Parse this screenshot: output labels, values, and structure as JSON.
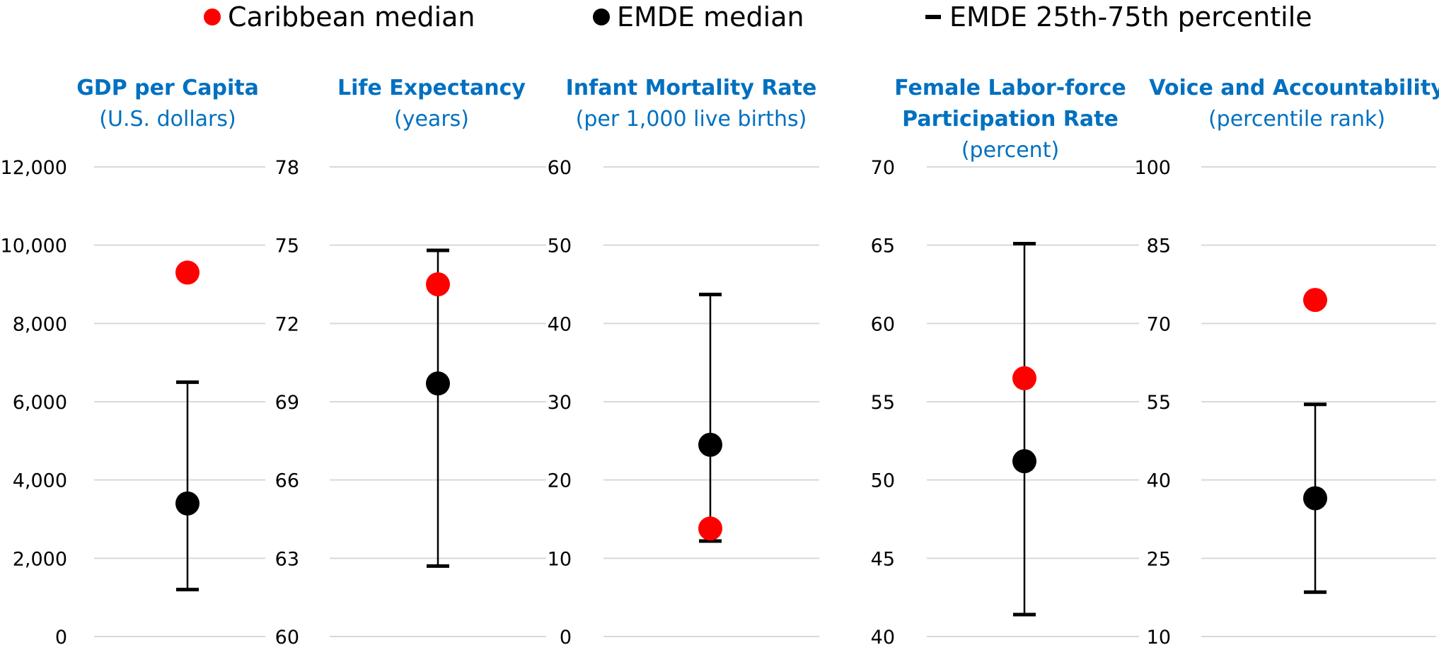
{
  "legend": {
    "caribbean": "Caribbean median",
    "emde": "EMDE median",
    "range": "EMDE 25th-75th percentile"
  },
  "colors": {
    "caribbean": "#FF0000",
    "emde": "#000000",
    "title": "#0070C0",
    "grid": "#D9D9D9"
  },
  "chart_data": [
    {
      "type": "scatter",
      "title": "GDP per Capita",
      "subtitle": "(U.S. dollars)",
      "ticks": [
        "0",
        "2,000",
        "4,000",
        "6,000",
        "8,000",
        "10,000",
        "12,000"
      ],
      "ylim": [
        0,
        12000
      ],
      "caribbean_median": 9300,
      "emde_median": 3400,
      "emde_p25": 1200,
      "emde_p75": 6500
    },
    {
      "type": "scatter",
      "title": "Life Expectancy",
      "subtitle": "(years)",
      "ticks": [
        "60",
        "63",
        "66",
        "69",
        "72",
        "75",
        "78"
      ],
      "ylim": [
        60,
        78
      ],
      "caribbean_median": 73.5,
      "emde_median": 69.7,
      "emde_p25": 62.7,
      "emde_p75": 74.8
    },
    {
      "type": "scatter",
      "title": "Infant Mortality Rate",
      "subtitle": "(per 1,000 live births)",
      "ticks": [
        "0",
        "10",
        "20",
        "30",
        "40",
        "50",
        "60"
      ],
      "ylim": [
        0,
        60
      ],
      "caribbean_median": 13.8,
      "emde_median": 24.5,
      "emde_p25": 12.2,
      "emde_p75": 43.7
    },
    {
      "type": "scatter",
      "title": "Female Labor-force",
      "title2": "Participation Rate",
      "subtitle": "(percent)",
      "ticks": [
        "40",
        "45",
        "50",
        "55",
        "60",
        "65",
        "70"
      ],
      "ylim": [
        40,
        70
      ],
      "caribbean_median": 56.5,
      "emde_median": 51.2,
      "emde_p25": 41.4,
      "emde_p75": 65.1
    },
    {
      "type": "scatter",
      "title": "Voice and Accountability",
      "subtitle": "(percentile rank)",
      "ticks": [
        "10",
        "25",
        "40",
        "55",
        "70",
        "85",
        "100"
      ],
      "ylim": [
        10,
        100
      ],
      "caribbean_median": 74.5,
      "emde_median": 36.5,
      "emde_p25": 18.5,
      "emde_p75": 54.5
    }
  ]
}
